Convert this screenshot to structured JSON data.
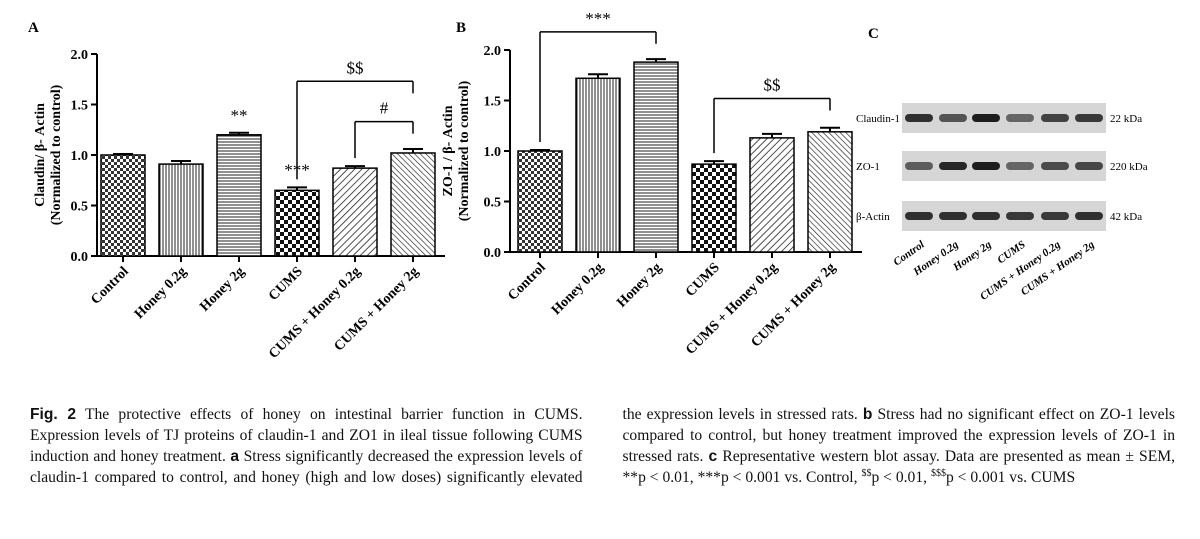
{
  "chart_data": [
    {
      "panel": "A",
      "type": "bar",
      "ylabel_line1": "Claudin/ β- Actin",
      "ylabel_line2": "(Normalized to control)",
      "ylim": [
        0,
        2.0
      ],
      "yticks": [
        "0.0",
        "0.5",
        "1.0",
        "1.5",
        "2.0"
      ],
      "categories": [
        "Control",
        "Honey 0.2g",
        "Honey 2g",
        "CUMS",
        "CUMS + Honey 0.2g",
        "CUMS + Honey 2g"
      ],
      "values": [
        1.0,
        0.91,
        1.2,
        0.65,
        0.87,
        1.02
      ],
      "errors": [
        0.01,
        0.03,
        0.02,
        0.03,
        0.02,
        0.04
      ],
      "patterns": [
        "pat-check",
        "pat-vert",
        "pat-horiz",
        "pat-check-big",
        "pat-diag",
        "pat-diag-dense"
      ],
      "annotations": [
        {
          "label": "**",
          "bar": 2
        },
        {
          "label": "***",
          "bar": 3
        }
      ],
      "brackets": [
        {
          "label": "$$",
          "from": 3,
          "to": 5,
          "level": 1.73
        },
        {
          "label": "#",
          "from": 4,
          "to": 5,
          "level": 1.33
        }
      ]
    },
    {
      "panel": "B",
      "type": "bar",
      "ylabel_line1": "ZO-1 / β- Actin",
      "ylabel_line2": "(Normalized to control)",
      "ylim": [
        0,
        2.0
      ],
      "yticks": [
        "0.0",
        "0.5",
        "1.0",
        "1.5",
        "2.0"
      ],
      "categories": [
        "Control",
        "Honey 0.2g",
        "Honey 2g",
        "CUMS",
        "CUMS + Honey 0.2g",
        "CUMS + Honey 2g"
      ],
      "values": [
        1.0,
        1.72,
        1.88,
        0.87,
        1.13,
        1.19
      ],
      "errors": [
        0.01,
        0.04,
        0.03,
        0.03,
        0.04,
        0.04
      ],
      "patterns": [
        "pat-check",
        "pat-vert",
        "pat-horiz",
        "pat-check-big",
        "pat-diag",
        "pat-diag-dense"
      ],
      "annotations": [],
      "brackets": [
        {
          "label": "***",
          "from": 0,
          "to": 2,
          "level": 2.18
        },
        {
          "label": "$$",
          "from": 3,
          "to": 5,
          "level": 1.52
        }
      ]
    }
  ],
  "blot": {
    "panel": "C",
    "rows": [
      {
        "label": "Claudin-1",
        "size": "22 kDa"
      },
      {
        "label": "ZO-1",
        "size": "220 kDa"
      },
      {
        "label": "β-Actin",
        "size": "42 kDa"
      }
    ],
    "lanes": [
      "Control",
      "Honey 0.2g",
      "Honey 2g",
      "CUMS",
      "CUMS + Honey 0.2g",
      "CUMS + Honey 2g"
    ],
    "band_intensity": [
      [
        0.85,
        0.65,
        0.95,
        0.55,
        0.75,
        0.8
      ],
      [
        0.6,
        0.9,
        0.95,
        0.55,
        0.7,
        0.72
      ],
      [
        0.85,
        0.85,
        0.85,
        0.8,
        0.8,
        0.85
      ]
    ]
  },
  "caption": {
    "fig_label": "Fig. 2",
    "intro": "The protective effects of honey on intestinal barrier function in CUMS. Expression levels of TJ proteins of claudin-1 and ZO1 in ileal tissue following CUMS induction and honey treatment.",
    "a_label": "a",
    "a_text": "Stress significantly decreased the expression levels of claudin-1 compared to control, and honey (high and low doses) significantly elevated the expression levels in stressed rats.",
    "b_label": "b",
    "b_text": "Stress had no significant effect on ZO-1 levels compared to control, but honey treatment improved the expression levels of ZO-1 in stressed rats.",
    "c_label": "c",
    "c_text": "Representative western blot assay. Data are presented as mean ± SEM, **p < 0.01, ***p < 0.001 vs. Control,",
    "sup1": "$$",
    "p1": "p < 0.01,",
    "sup2": "$$$",
    "p2": "p < 0.001 vs. CUMS"
  }
}
